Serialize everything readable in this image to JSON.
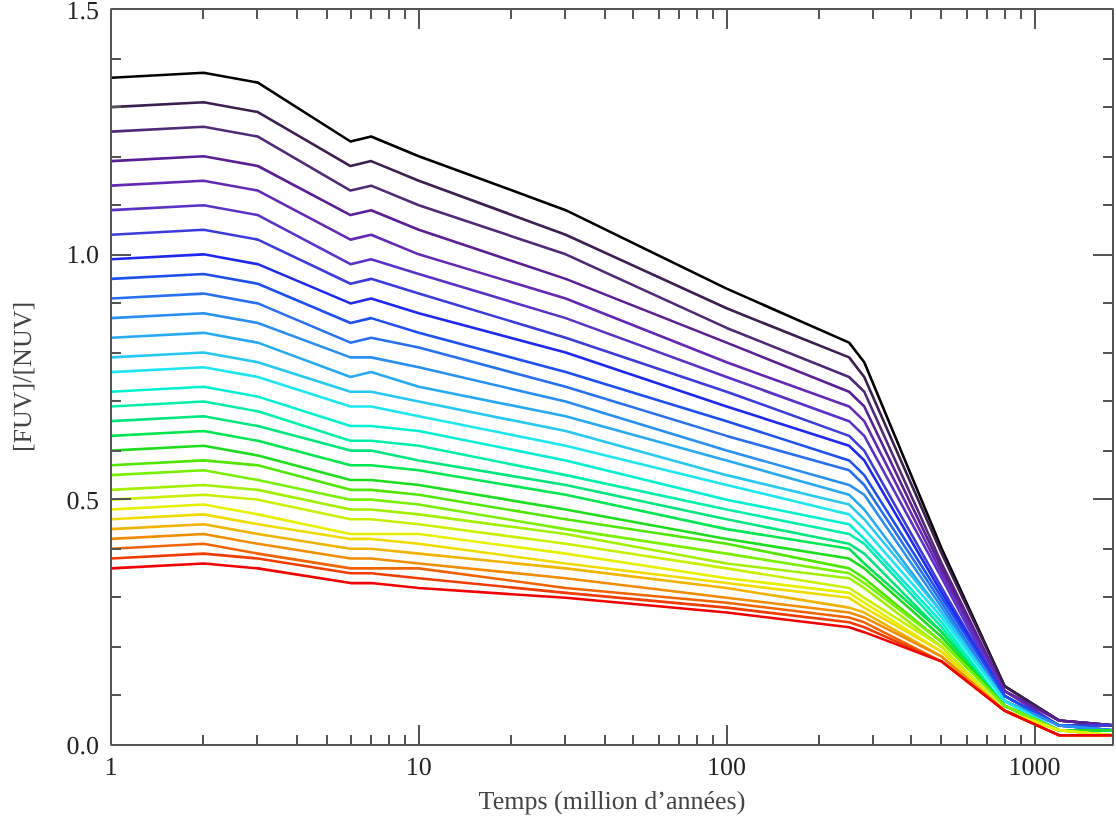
{
  "chart_data": {
    "type": "line",
    "xlabel": "Temps (million d’années)",
    "ylabel": "[FUV]/[NUV]",
    "log": "x",
    "grid": false,
    "marker": "none",
    "line_style": "solid",
    "xlim": [
      1,
      1800
    ],
    "xticks": [
      1,
      10,
      100,
      1000
    ],
    "ylim": [
      0,
      1.5
    ],
    "yticks": [
      {
        "value": 0,
        "label": "0.0"
      },
      {
        "value": 0.1,
        "label": null
      },
      {
        "value": 0.2,
        "label": null
      },
      {
        "value": 0.3,
        "label": null
      },
      {
        "value": 0.4,
        "label": null
      },
      {
        "value": 0.5,
        "label": "0.5"
      },
      {
        "value": 0.6,
        "label": null
      },
      {
        "value": 0.7,
        "label": null
      },
      {
        "value": 0.8,
        "label": null
      },
      {
        "value": 0.9,
        "label": null
      },
      {
        "value": 1.0,
        "label": "1.0"
      },
      {
        "value": 1.1,
        "label": null
      },
      {
        "value": 1.2,
        "label": null
      },
      {
        "value": 1.3,
        "label": null
      },
      {
        "value": 1.4,
        "label": null
      },
      {
        "value": 1.5,
        "label": "1.5"
      }
    ],
    "x": [
      1,
      2,
      3,
      6,
      7,
      10,
      30,
      100,
      250,
      280,
      500,
      800,
      1200,
      1800
    ],
    "series": [
      {
        "color": "#000000",
        "values": [
          1.36,
          1.37,
          1.35,
          1.23,
          1.24,
          1.2,
          1.09,
          0.93,
          0.82,
          0.78,
          0.4,
          0.12,
          0.05,
          0.04
        ]
      },
      {
        "color": "#3c1e50",
        "values": [
          1.3,
          1.31,
          1.29,
          1.18,
          1.19,
          1.15,
          1.04,
          0.89,
          0.79,
          0.75,
          0.39,
          0.12,
          0.05,
          0.04
        ]
      },
      {
        "color": "#502a78",
        "values": [
          1.25,
          1.26,
          1.24,
          1.13,
          1.14,
          1.1,
          1.0,
          0.85,
          0.75,
          0.72,
          0.37,
          0.11,
          0.05,
          0.04
        ]
      },
      {
        "color": "#5a1e96",
        "values": [
          1.19,
          1.2,
          1.18,
          1.08,
          1.09,
          1.05,
          0.95,
          0.82,
          0.72,
          0.69,
          0.36,
          0.11,
          0.05,
          0.04
        ]
      },
      {
        "color": "#6428b4",
        "values": [
          1.14,
          1.15,
          1.13,
          1.03,
          1.04,
          1.0,
          0.91,
          0.78,
          0.69,
          0.66,
          0.35,
          0.11,
          0.04,
          0.04
        ]
      },
      {
        "color": "#5a32c8",
        "values": [
          1.09,
          1.1,
          1.08,
          0.98,
          0.99,
          0.96,
          0.87,
          0.75,
          0.66,
          0.63,
          0.34,
          0.1,
          0.04,
          0.04
        ]
      },
      {
        "color": "#3c3cdc",
        "values": [
          1.04,
          1.05,
          1.03,
          0.94,
          0.95,
          0.92,
          0.83,
          0.72,
          0.63,
          0.6,
          0.32,
          0.1,
          0.04,
          0.04
        ]
      },
      {
        "color": "#1e28f0",
        "values": [
          0.99,
          1.0,
          0.98,
          0.9,
          0.91,
          0.88,
          0.8,
          0.69,
          0.61,
          0.58,
          0.31,
          0.1,
          0.04,
          0.03
        ]
      },
      {
        "color": "#1e50f0",
        "values": [
          0.95,
          0.96,
          0.94,
          0.86,
          0.87,
          0.84,
          0.76,
          0.66,
          0.58,
          0.55,
          0.3,
          0.1,
          0.04,
          0.03
        ]
      },
      {
        "color": "#2870f0",
        "values": [
          0.91,
          0.92,
          0.9,
          0.82,
          0.83,
          0.81,
          0.73,
          0.63,
          0.56,
          0.53,
          0.29,
          0.09,
          0.04,
          0.03
        ]
      },
      {
        "color": "#2890f0",
        "values": [
          0.87,
          0.88,
          0.86,
          0.79,
          0.79,
          0.77,
          0.7,
          0.6,
          0.53,
          0.51,
          0.28,
          0.09,
          0.04,
          0.03
        ]
      },
      {
        "color": "#28aaf0",
        "values": [
          0.83,
          0.84,
          0.82,
          0.75,
          0.76,
          0.73,
          0.67,
          0.58,
          0.51,
          0.48,
          0.27,
          0.09,
          0.03,
          0.03
        ]
      },
      {
        "color": "#28c8f0",
        "values": [
          0.79,
          0.8,
          0.78,
          0.72,
          0.72,
          0.7,
          0.64,
          0.55,
          0.49,
          0.46,
          0.27,
          0.09,
          0.03,
          0.03
        ]
      },
      {
        "color": "#1ee6f0",
        "values": [
          0.76,
          0.77,
          0.75,
          0.69,
          0.69,
          0.67,
          0.61,
          0.53,
          0.47,
          0.44,
          0.26,
          0.09,
          0.03,
          0.03
        ]
      },
      {
        "color": "#00f0d2",
        "values": [
          0.72,
          0.73,
          0.71,
          0.65,
          0.65,
          0.64,
          0.58,
          0.5,
          0.45,
          0.42,
          0.25,
          0.08,
          0.03,
          0.03
        ]
      },
      {
        "color": "#00f0aa",
        "values": [
          0.69,
          0.7,
          0.68,
          0.62,
          0.62,
          0.61,
          0.55,
          0.48,
          0.43,
          0.41,
          0.24,
          0.08,
          0.03,
          0.03
        ]
      },
      {
        "color": "#00e67d",
        "values": [
          0.66,
          0.67,
          0.65,
          0.6,
          0.6,
          0.58,
          0.53,
          0.46,
          0.41,
          0.39,
          0.23,
          0.08,
          0.03,
          0.03
        ]
      },
      {
        "color": "#00e650",
        "values": [
          0.63,
          0.64,
          0.62,
          0.57,
          0.57,
          0.56,
          0.51,
          0.44,
          0.4,
          0.37,
          0.23,
          0.08,
          0.03,
          0.03
        ]
      },
      {
        "color": "#1edc1e",
        "values": [
          0.6,
          0.61,
          0.59,
          0.54,
          0.54,
          0.53,
          0.48,
          0.42,
          0.38,
          0.36,
          0.22,
          0.08,
          0.03,
          0.03
        ]
      },
      {
        "color": "#50e600",
        "values": [
          0.57,
          0.58,
          0.57,
          0.52,
          0.52,
          0.51,
          0.46,
          0.41,
          0.36,
          0.34,
          0.21,
          0.08,
          0.03,
          0.02
        ]
      },
      {
        "color": "#78f000",
        "values": [
          0.55,
          0.56,
          0.54,
          0.5,
          0.5,
          0.49,
          0.44,
          0.39,
          0.35,
          0.33,
          0.21,
          0.08,
          0.03,
          0.02
        ]
      },
      {
        "color": "#a0f000",
        "values": [
          0.52,
          0.53,
          0.52,
          0.48,
          0.48,
          0.47,
          0.43,
          0.37,
          0.34,
          0.32,
          0.2,
          0.07,
          0.03,
          0.02
        ]
      },
      {
        "color": "#c8f000",
        "values": [
          0.5,
          0.51,
          0.5,
          0.46,
          0.46,
          0.45,
          0.41,
          0.36,
          0.32,
          0.3,
          0.2,
          0.07,
          0.03,
          0.02
        ]
      },
      {
        "color": "#e6f000",
        "values": [
          0.48,
          0.49,
          0.47,
          0.43,
          0.43,
          0.43,
          0.39,
          0.34,
          0.31,
          0.29,
          0.19,
          0.07,
          0.03,
          0.02
        ]
      },
      {
        "color": "#f0dc00",
        "values": [
          0.46,
          0.47,
          0.45,
          0.42,
          0.42,
          0.41,
          0.37,
          0.33,
          0.3,
          0.28,
          0.19,
          0.07,
          0.02,
          0.02
        ]
      },
      {
        "color": "#f0b400",
        "values": [
          0.44,
          0.45,
          0.43,
          0.4,
          0.4,
          0.39,
          0.36,
          0.32,
          0.28,
          0.27,
          0.18,
          0.07,
          0.02,
          0.02
        ]
      },
      {
        "color": "#f08c00",
        "values": [
          0.42,
          0.43,
          0.41,
          0.38,
          0.38,
          0.37,
          0.34,
          0.3,
          0.27,
          0.26,
          0.18,
          0.07,
          0.02,
          0.02
        ]
      },
      {
        "color": "#f06400",
        "values": [
          0.4,
          0.41,
          0.39,
          0.36,
          0.36,
          0.36,
          0.32,
          0.29,
          0.26,
          0.25,
          0.17,
          0.07,
          0.02,
          0.02
        ]
      },
      {
        "color": "#f03c00",
        "values": [
          0.38,
          0.39,
          0.38,
          0.35,
          0.35,
          0.34,
          0.31,
          0.28,
          0.25,
          0.24,
          0.17,
          0.07,
          0.02,
          0.02
        ]
      },
      {
        "color": "#f00000",
        "values": [
          0.36,
          0.37,
          0.36,
          0.33,
          0.33,
          0.32,
          0.3,
          0.27,
          0.24,
          0.23,
          0.17,
          0.07,
          0.02,
          0.02
        ]
      }
    ]
  }
}
